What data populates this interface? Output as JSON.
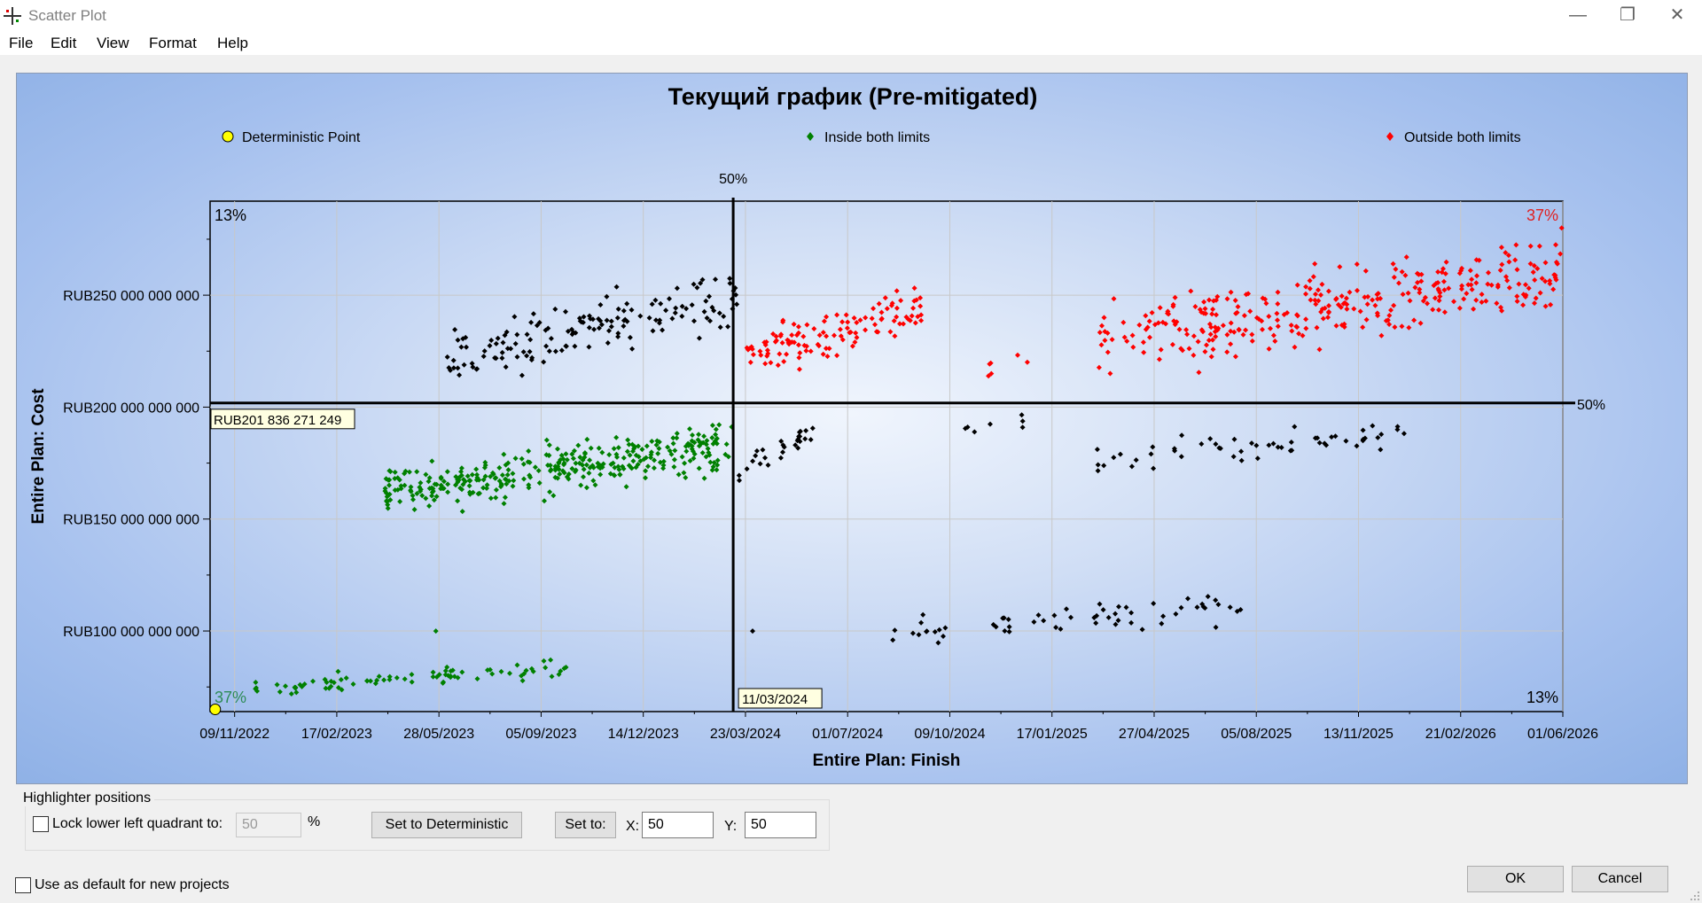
{
  "window": {
    "title": "Scatter Plot",
    "min_glyph": "—",
    "max_glyph": "❐",
    "close_glyph": "✕"
  },
  "menu": [
    "File",
    "Edit",
    "View",
    "Format",
    "Help"
  ],
  "chart_data": {
    "type": "scatter",
    "title": "Текущий график (Pre-mitigated)",
    "xlabel": "Entire Plan: Finish",
    "ylabel": "Entire Plan: Cost",
    "x_ticks": [
      "09/11/2022",
      "17/02/2023",
      "28/05/2023",
      "05/09/2023",
      "14/12/2023",
      "23/03/2024",
      "01/07/2024",
      "09/10/2024",
      "17/01/2025",
      "27/04/2025",
      "05/08/2025",
      "13/11/2025",
      "21/02/2026",
      "01/06/2026"
    ],
    "xlim": [
      "2022-10-16",
      "2026-06-01"
    ],
    "y_ticks": [
      {
        "value": 100000000000,
        "label": "RUB100 000 000 000"
      },
      {
        "value": 150000000000,
        "label": "RUB150 000 000 000"
      },
      {
        "value": 200000000000,
        "label": "RUB200 000 000 000"
      },
      {
        "value": 250000000000,
        "label": "RUB250 000 000 000"
      }
    ],
    "ylim": [
      64000000000,
      292000000000
    ],
    "grid": true,
    "legend_position": "top",
    "legend": [
      {
        "label": "Deterministic Point",
        "color": "#ffff00",
        "marker": "circle"
      },
      {
        "label": "Inside both limits",
        "color": "#008000",
        "marker": "diamond"
      },
      {
        "label": "Outside both limits",
        "color": "#ff0000",
        "marker": "diamond"
      }
    ],
    "deterministic_point": {
      "x": "2022-10-21",
      "y": 65000000000
    },
    "highlighter": {
      "x_label": "11/03/2024",
      "y_label": "RUB201 836 271 249",
      "x_value": "2024-03-11",
      "y_value": 201836271249,
      "top_marker": "50%",
      "right_marker": "50%"
    },
    "quadrant_pcts": {
      "top_left": "13%",
      "top_right": "37%",
      "bottom_left": "37%",
      "bottom_right": "13%"
    },
    "colors": {
      "inside": "#008000",
      "outside": "#ff0000",
      "other": "#000000",
      "deterministic": "#ffff00",
      "top_right_pct": "#e02020",
      "bottom_left_pct": "#2e8b57"
    },
    "series": [
      {
        "name": "Outside both limits",
        "color": "#ff0000",
        "clusters": [
          {
            "x": [
              "2024-03-22",
              "2024-09-12"
            ],
            "y": [
              203000000000,
              262000000000
            ],
            "n": 120
          },
          {
            "x": [
              "2024-10-01",
              "2025-01-10"
            ],
            "y": [
              205000000000,
              230000000000
            ],
            "n": 6
          },
          {
            "x": [
              "2025-03-01",
              "2026-06-01"
            ],
            "y": [
              203000000000,
              288000000000
            ],
            "n": 330
          }
        ]
      },
      {
        "name": "Inside both limits",
        "color": "#008000",
        "clusters": [
          {
            "x": [
              "2023-04-05",
              "2024-03-10"
            ],
            "y": [
              145000000000,
              200000000000
            ],
            "n": 350
          },
          {
            "x": [
              "2022-11-25",
              "2023-10-05"
            ],
            "y": [
              68000000000,
              90000000000
            ],
            "n": 80
          },
          {
            "x": [
              "2023-05-25",
              "2023-05-25"
            ],
            "y": [
              100000000000,
              100000000000
            ],
            "n": 1
          }
        ]
      },
      {
        "series_role": "other",
        "color": "#000000",
        "clusters": [
          {
            "x": [
              "2023-06-01",
              "2024-03-15"
            ],
            "y": [
              203000000000,
              268000000000
            ],
            "n": 150
          },
          {
            "x": [
              "2024-03-12",
              "2024-06-05"
            ],
            "y": [
              160000000000,
              200000000000
            ],
            "n": 28
          },
          {
            "x": [
              "2024-10-20",
              "2025-01-10"
            ],
            "y": [
              183000000000,
              200000000000
            ],
            "n": 7
          },
          {
            "x": [
              "2025-02-15",
              "2025-12-31"
            ],
            "y": [
              165000000000,
              200000000000
            ],
            "n": 55
          },
          {
            "x": [
              "2024-08-01",
              "2025-08-01"
            ],
            "y": [
              88000000000,
              122000000000
            ],
            "n": 60
          },
          {
            "x": [
              "2024-03-30",
              "2024-03-30"
            ],
            "y": [
              100000000000,
              100000000000
            ],
            "n": 1
          }
        ]
      }
    ]
  },
  "highlighter_group": {
    "title": "Highlighter positions",
    "lock_label": "Lock lower left quadrant to:",
    "lock_value": "50",
    "pct_symbol": "%",
    "set_deterministic_label": "Set to Deterministic",
    "set_to_label": "Set to:",
    "x_label": "X:",
    "x_value": "50",
    "y_label": "Y:",
    "y_value": "50"
  },
  "default_label": "Use as default for new projects",
  "ok_label": "OK",
  "cancel_label": "Cancel"
}
